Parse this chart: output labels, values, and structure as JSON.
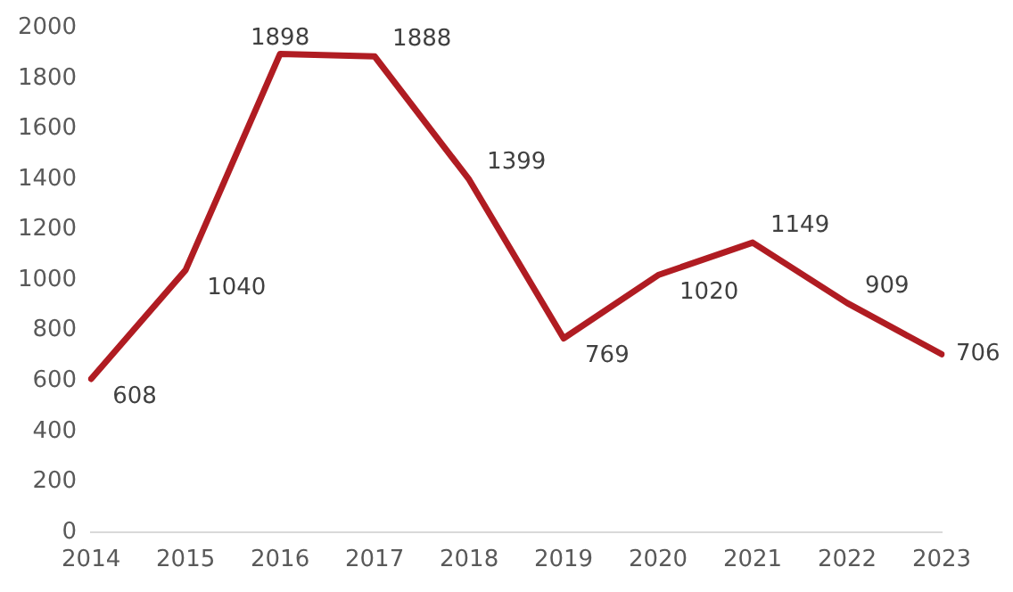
{
  "chart_data": {
    "type": "line",
    "categories": [
      "2014",
      "2015",
      "2016",
      "2017",
      "2018",
      "2019",
      "2020",
      "2021",
      "2022",
      "2023"
    ],
    "series": [
      {
        "color": "#b01c22",
        "values": [
          608,
          1040,
          1898,
          1888,
          1399,
          769,
          1020,
          1149,
          909,
          706
        ]
      }
    ],
    "ylim": [
      0,
      2000
    ],
    "yticks": [
      0,
      200,
      400,
      600,
      800,
      1000,
      1200,
      1400,
      1600,
      1800,
      2000
    ],
    "grid": false,
    "legend": false,
    "marker": "none",
    "data_labels": true
  }
}
